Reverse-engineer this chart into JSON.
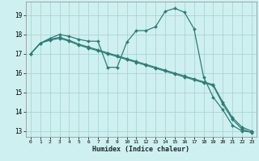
{
  "xlabel": "Humidex (Indice chaleur)",
  "ylabel": "",
  "background_color": "#cff0f0",
  "grid_color": "#aad4d4",
  "line_color": "#2d7d78",
  "xlim": [
    -0.5,
    23.5
  ],
  "ylim": [
    12.7,
    19.7
  ],
  "yticks": [
    13,
    14,
    15,
    16,
    17,
    18,
    19
  ],
  "xticks": [
    0,
    1,
    2,
    3,
    4,
    5,
    6,
    7,
    8,
    9,
    10,
    11,
    12,
    13,
    14,
    15,
    16,
    17,
    18,
    19,
    20,
    21,
    22,
    23
  ],
  "series": [
    {
      "x": [
        0,
        1,
        2,
        3,
        4,
        5,
        6,
        7,
        8,
        9,
        10,
        11,
        12,
        13,
        14,
        15,
        16,
        17,
        18,
        19,
        20,
        21,
        22,
        23
      ],
      "y": [
        17.0,
        17.55,
        17.8,
        18.0,
        17.9,
        17.75,
        17.65,
        17.65,
        16.3,
        16.3,
        17.6,
        18.2,
        18.2,
        18.4,
        19.2,
        19.35,
        19.15,
        18.3,
        15.8,
        14.75,
        14.1,
        13.3,
        13.0,
        12.95
      ],
      "marker": "D",
      "markersize": 2.0,
      "linewidth": 0.9
    },
    {
      "x": [
        0,
        1,
        2,
        3,
        4,
        5,
        6,
        7,
        8,
        9,
        10,
        11,
        12,
        13,
        14,
        15,
        16,
        17,
        18,
        19,
        20,
        21,
        22,
        23
      ],
      "y": [
        17.0,
        17.55,
        17.75,
        17.85,
        17.7,
        17.5,
        17.35,
        17.2,
        17.05,
        16.9,
        16.75,
        16.6,
        16.45,
        16.3,
        16.15,
        16.0,
        15.85,
        15.7,
        15.55,
        15.4,
        14.5,
        13.7,
        13.2,
        13.0
      ],
      "marker": "D",
      "markersize": 2.0,
      "linewidth": 0.9
    },
    {
      "x": [
        0,
        1,
        2,
        3,
        4,
        5,
        6,
        7,
        8,
        9,
        10,
        11,
        12,
        13,
        14,
        15,
        16,
        17,
        18,
        19,
        20,
        21,
        22,
        23
      ],
      "y": [
        17.0,
        17.55,
        17.7,
        17.8,
        17.65,
        17.45,
        17.3,
        17.15,
        17.0,
        16.85,
        16.7,
        16.55,
        16.4,
        16.25,
        16.1,
        15.95,
        15.8,
        15.65,
        15.5,
        15.35,
        14.4,
        13.6,
        13.1,
        12.92
      ],
      "marker": "D",
      "markersize": 2.0,
      "linewidth": 0.9
    }
  ]
}
